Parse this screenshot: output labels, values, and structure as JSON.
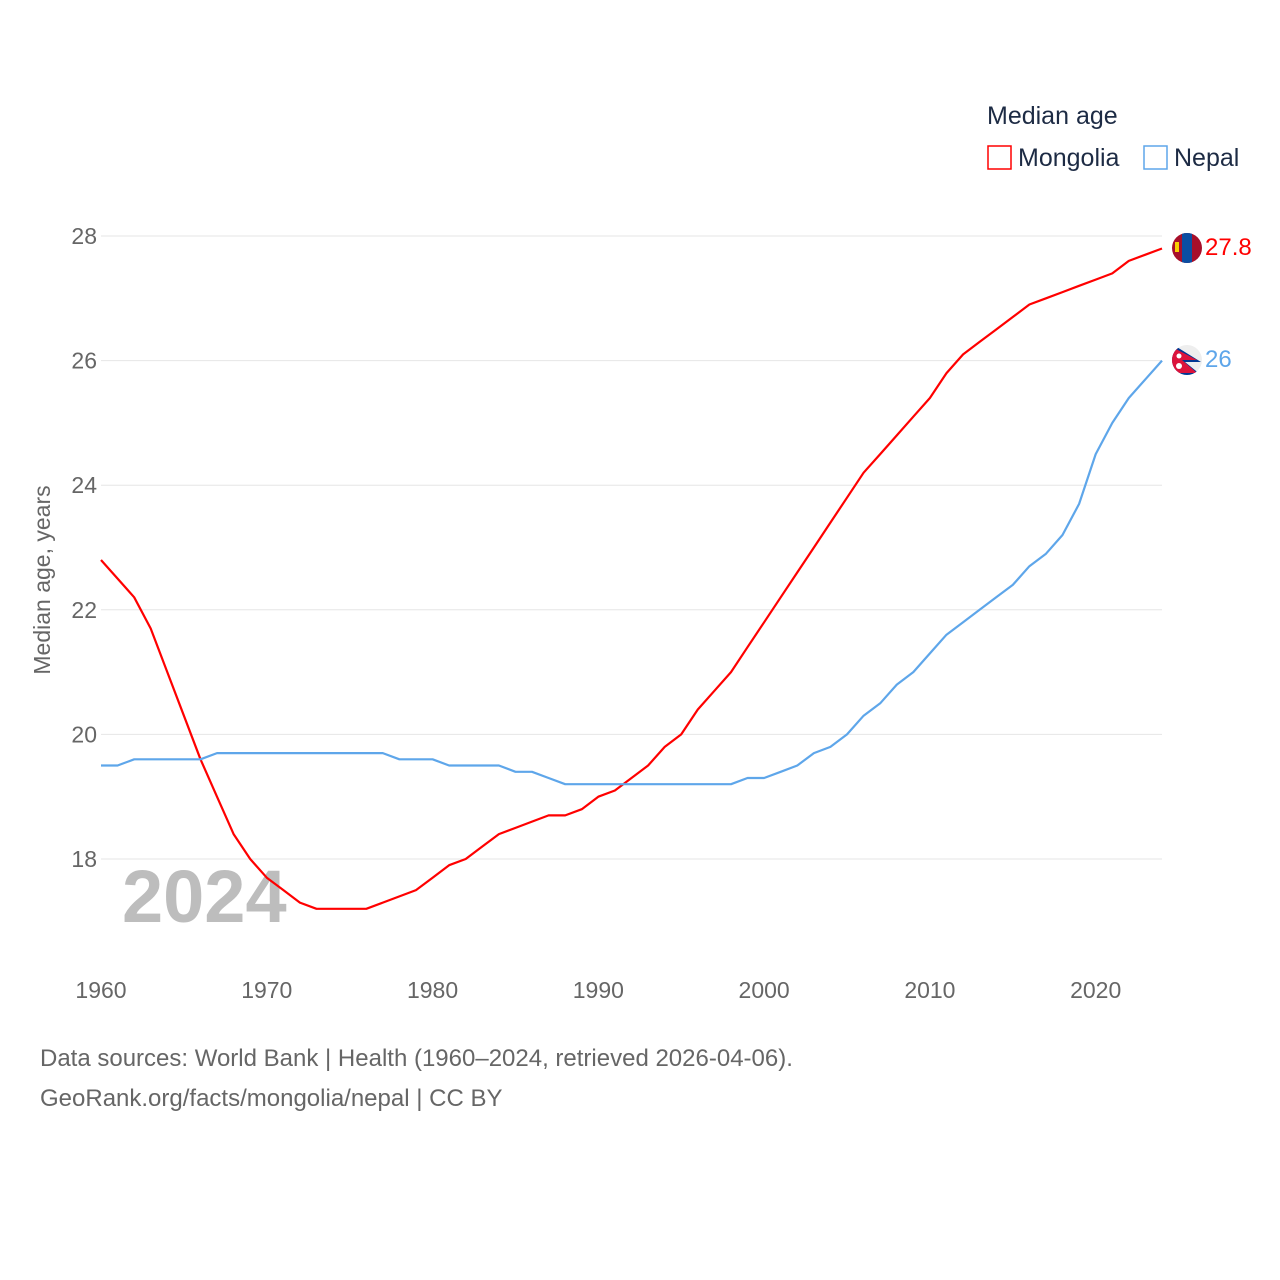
{
  "chart_data": {
    "type": "line",
    "title": "",
    "ylabel": "Median age, years",
    "xlabel": "",
    "xlim": [
      1960,
      2024
    ],
    "ylim": [
      18,
      28
    ],
    "y_ticks": [
      18,
      20,
      22,
      24,
      26,
      28
    ],
    "x_ticks": [
      1960,
      1970,
      1980,
      1990,
      2000,
      2010,
      2020
    ],
    "grid": true,
    "year_watermark": "2024",
    "legend": {
      "title": "Median age",
      "position": "top-right"
    },
    "x": [
      1960,
      1961,
      1962,
      1963,
      1964,
      1965,
      1966,
      1967,
      1968,
      1969,
      1970,
      1971,
      1972,
      1973,
      1974,
      1975,
      1976,
      1977,
      1978,
      1979,
      1980,
      1981,
      1982,
      1983,
      1984,
      1985,
      1986,
      1987,
      1988,
      1989,
      1990,
      1991,
      1992,
      1993,
      1994,
      1995,
      1996,
      1997,
      1998,
      1999,
      2000,
      2001,
      2002,
      2003,
      2004,
      2005,
      2006,
      2007,
      2008,
      2009,
      2010,
      2011,
      2012,
      2013,
      2014,
      2015,
      2016,
      2017,
      2018,
      2019,
      2020,
      2021,
      2022,
      2023,
      2024
    ],
    "series": [
      {
        "name": "Mongolia",
        "color": "#ff0000",
        "end_label": "27.8",
        "values": [
          22.8,
          22.5,
          22.2,
          21.7,
          21.0,
          20.3,
          19.6,
          19.0,
          18.4,
          18.0,
          17.7,
          17.5,
          17.3,
          17.2,
          17.2,
          17.2,
          17.2,
          17.3,
          17.4,
          17.5,
          17.7,
          17.9,
          18.0,
          18.2,
          18.4,
          18.5,
          18.6,
          18.7,
          18.7,
          18.8,
          19.0,
          19.1,
          19.3,
          19.5,
          19.8,
          20.0,
          20.4,
          20.7,
          21.0,
          21.4,
          21.8,
          22.2,
          22.6,
          23.0,
          23.4,
          23.8,
          24.2,
          24.5,
          24.8,
          25.1,
          25.4,
          25.8,
          26.1,
          26.3,
          26.5,
          26.7,
          26.9,
          27.0,
          27.1,
          27.2,
          27.3,
          27.4,
          27.6,
          27.7,
          27.8
        ]
      },
      {
        "name": "Nepal",
        "color": "#5ea6ea",
        "end_label": "26",
        "values": [
          19.5,
          19.5,
          19.6,
          19.6,
          19.6,
          19.6,
          19.6,
          19.7,
          19.7,
          19.7,
          19.7,
          19.7,
          19.7,
          19.7,
          19.7,
          19.7,
          19.7,
          19.7,
          19.6,
          19.6,
          19.6,
          19.5,
          19.5,
          19.5,
          19.5,
          19.4,
          19.4,
          19.3,
          19.2,
          19.2,
          19.2,
          19.2,
          19.2,
          19.2,
          19.2,
          19.2,
          19.2,
          19.2,
          19.2,
          19.3,
          19.3,
          19.4,
          19.5,
          19.7,
          19.8,
          20.0,
          20.3,
          20.5,
          20.8,
          21.0,
          21.3,
          21.6,
          21.8,
          22.0,
          22.2,
          22.4,
          22.7,
          22.9,
          23.2,
          23.7,
          24.5,
          25.0,
          25.4,
          25.7,
          26.0
        ]
      }
    ]
  },
  "footer": {
    "line1": "Data sources: World Bank | Health (1960–2024, retrieved 2026-04-06).",
    "line2": "GeoRank.org/facts/mongolia/nepal | CC BY"
  }
}
